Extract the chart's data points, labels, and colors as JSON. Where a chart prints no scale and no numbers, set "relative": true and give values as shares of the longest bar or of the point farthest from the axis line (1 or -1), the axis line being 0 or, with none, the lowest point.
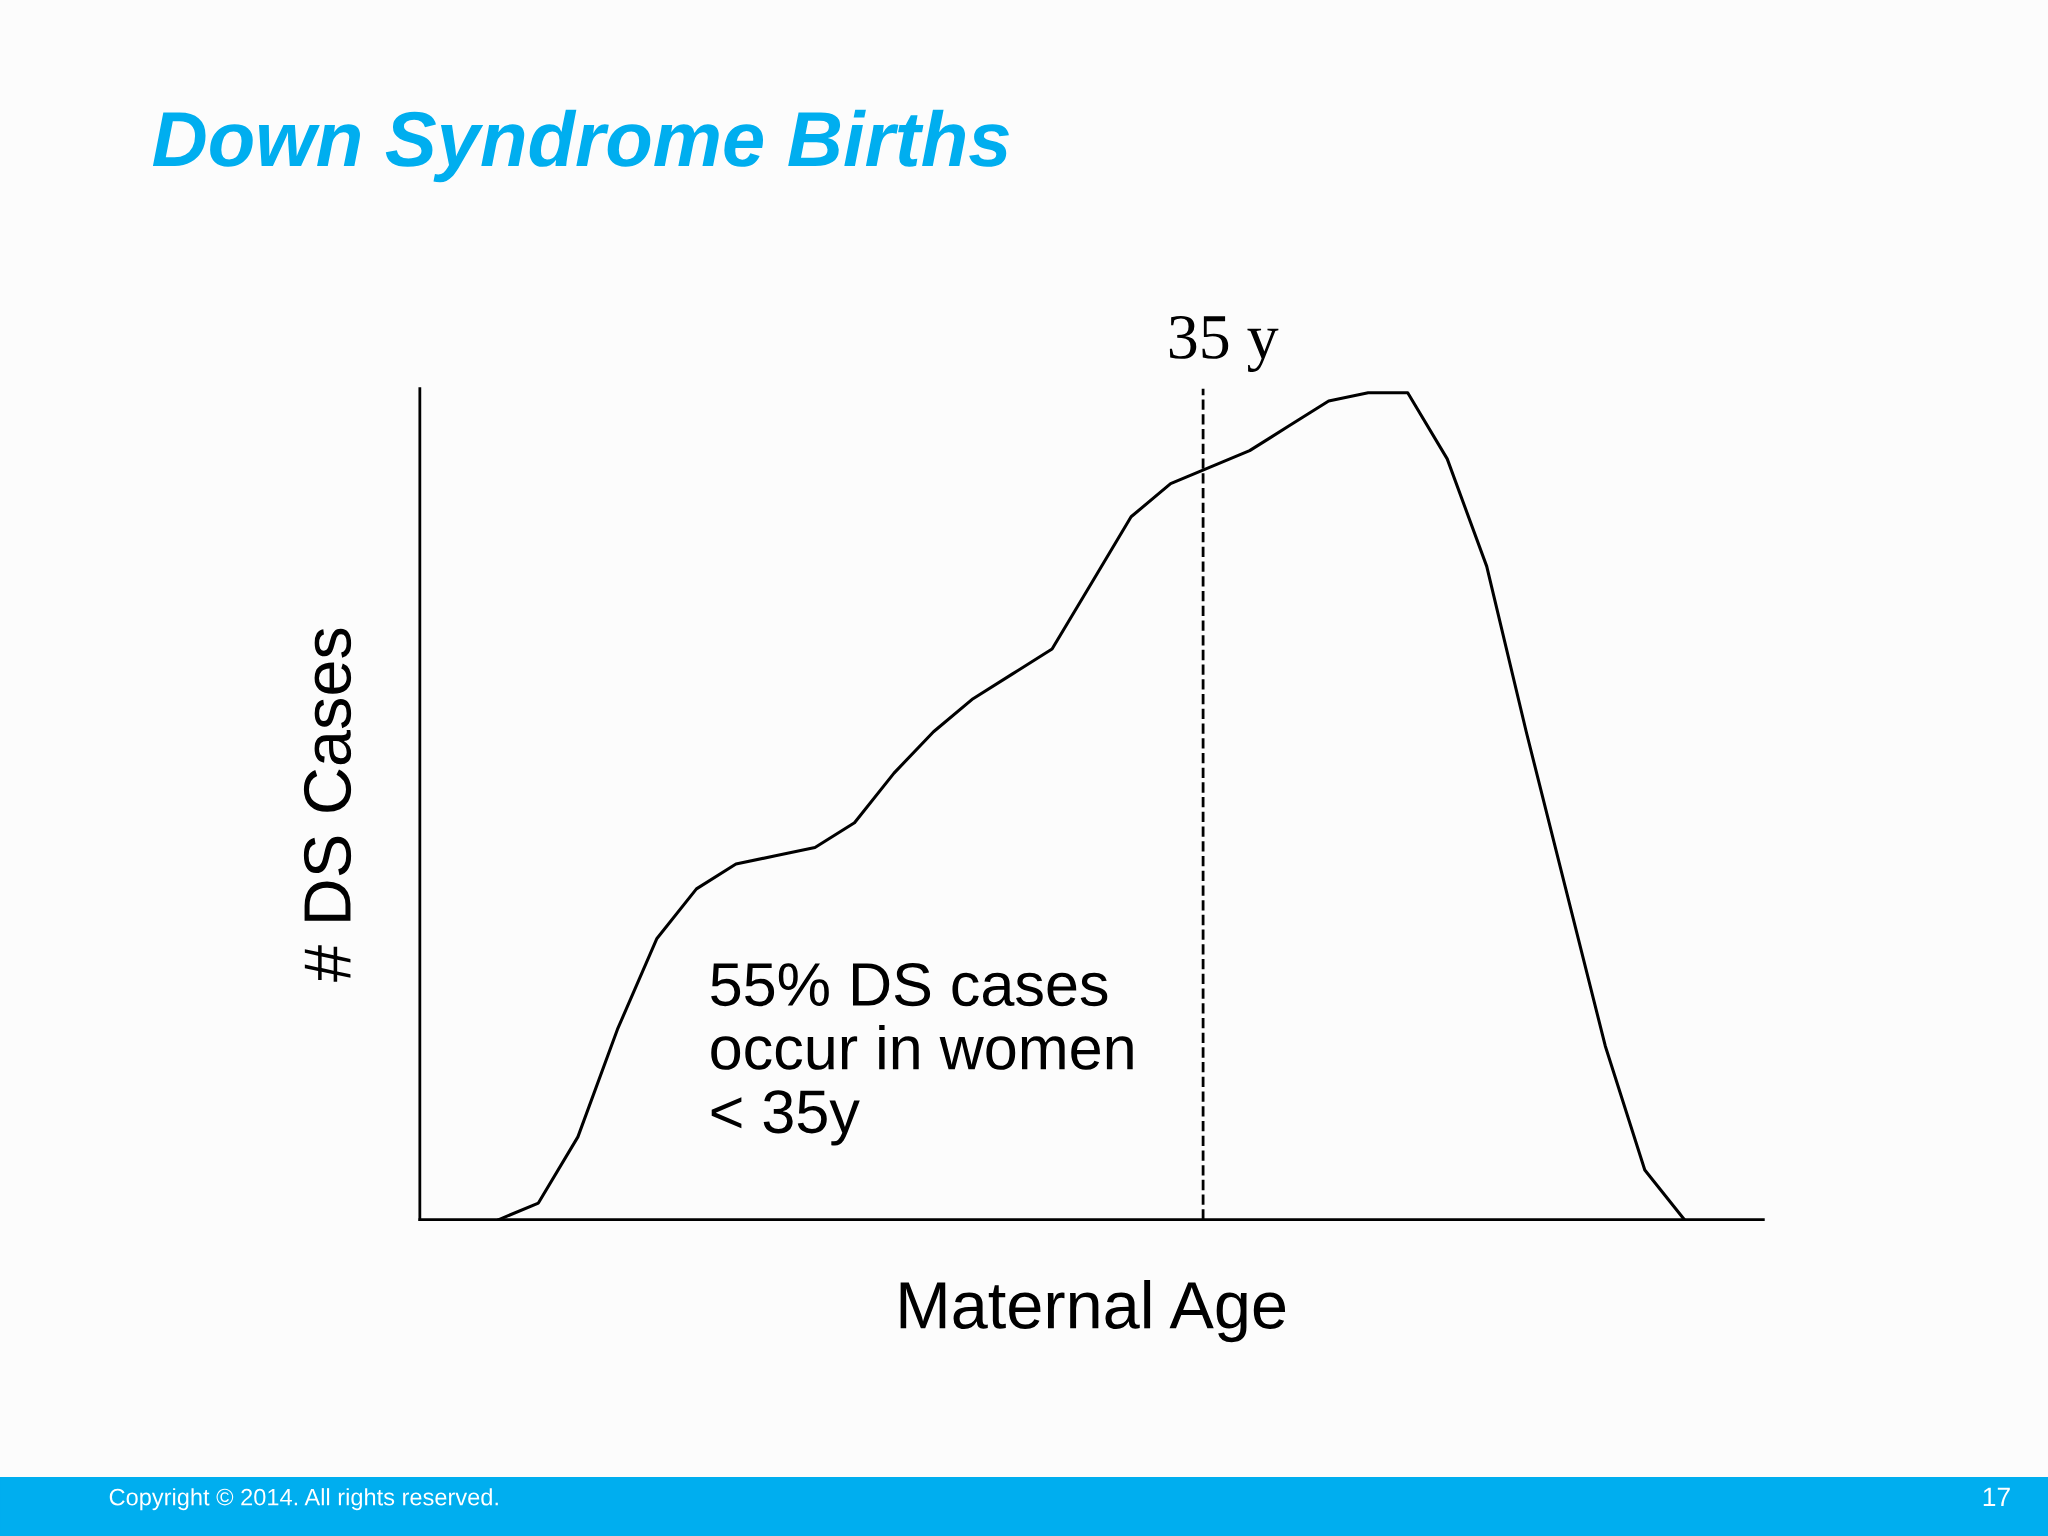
{
  "chart_data": {
    "type": "line",
    "title": "Down Syndrome Births",
    "xlabel": "Maternal Age",
    "ylabel": "# DS Cases",
    "relative": true,
    "grid": false,
    "legend": false,
    "marker": "none",
    "line_style": "solid",
    "categories": [
      null,
      null,
      null,
      null,
      null,
      null,
      null,
      null,
      null,
      null,
      null,
      null,
      null,
      null,
      null,
      null,
      null,
      null,
      null,
      null,
      null,
      null,
      null,
      null,
      null,
      null,
      null,
      null,
      null,
      null,
      null
    ],
    "series": [
      {
        "color": "#000000",
        "values": [
          0,
          0.02,
          0.1,
          0.23,
          0.34,
          0.4,
          0.43,
          0.44,
          0.45,
          0.48,
          0.54,
          0.59,
          0.63,
          0.66,
          0.69,
          0.77,
          0.85,
          0.89,
          0.91,
          0.93,
          0.96,
          0.99,
          1,
          1,
          0.92,
          0.79,
          0.59,
          0.4,
          0.21,
          0.06,
          0
        ]
      }
    ],
    "annotations": [
      "55% DS cases\noccur in women\n< 35y",
      "Copyright © 2014. All rights reserved.",
      "17",
      "35 y"
    ]
  }
}
